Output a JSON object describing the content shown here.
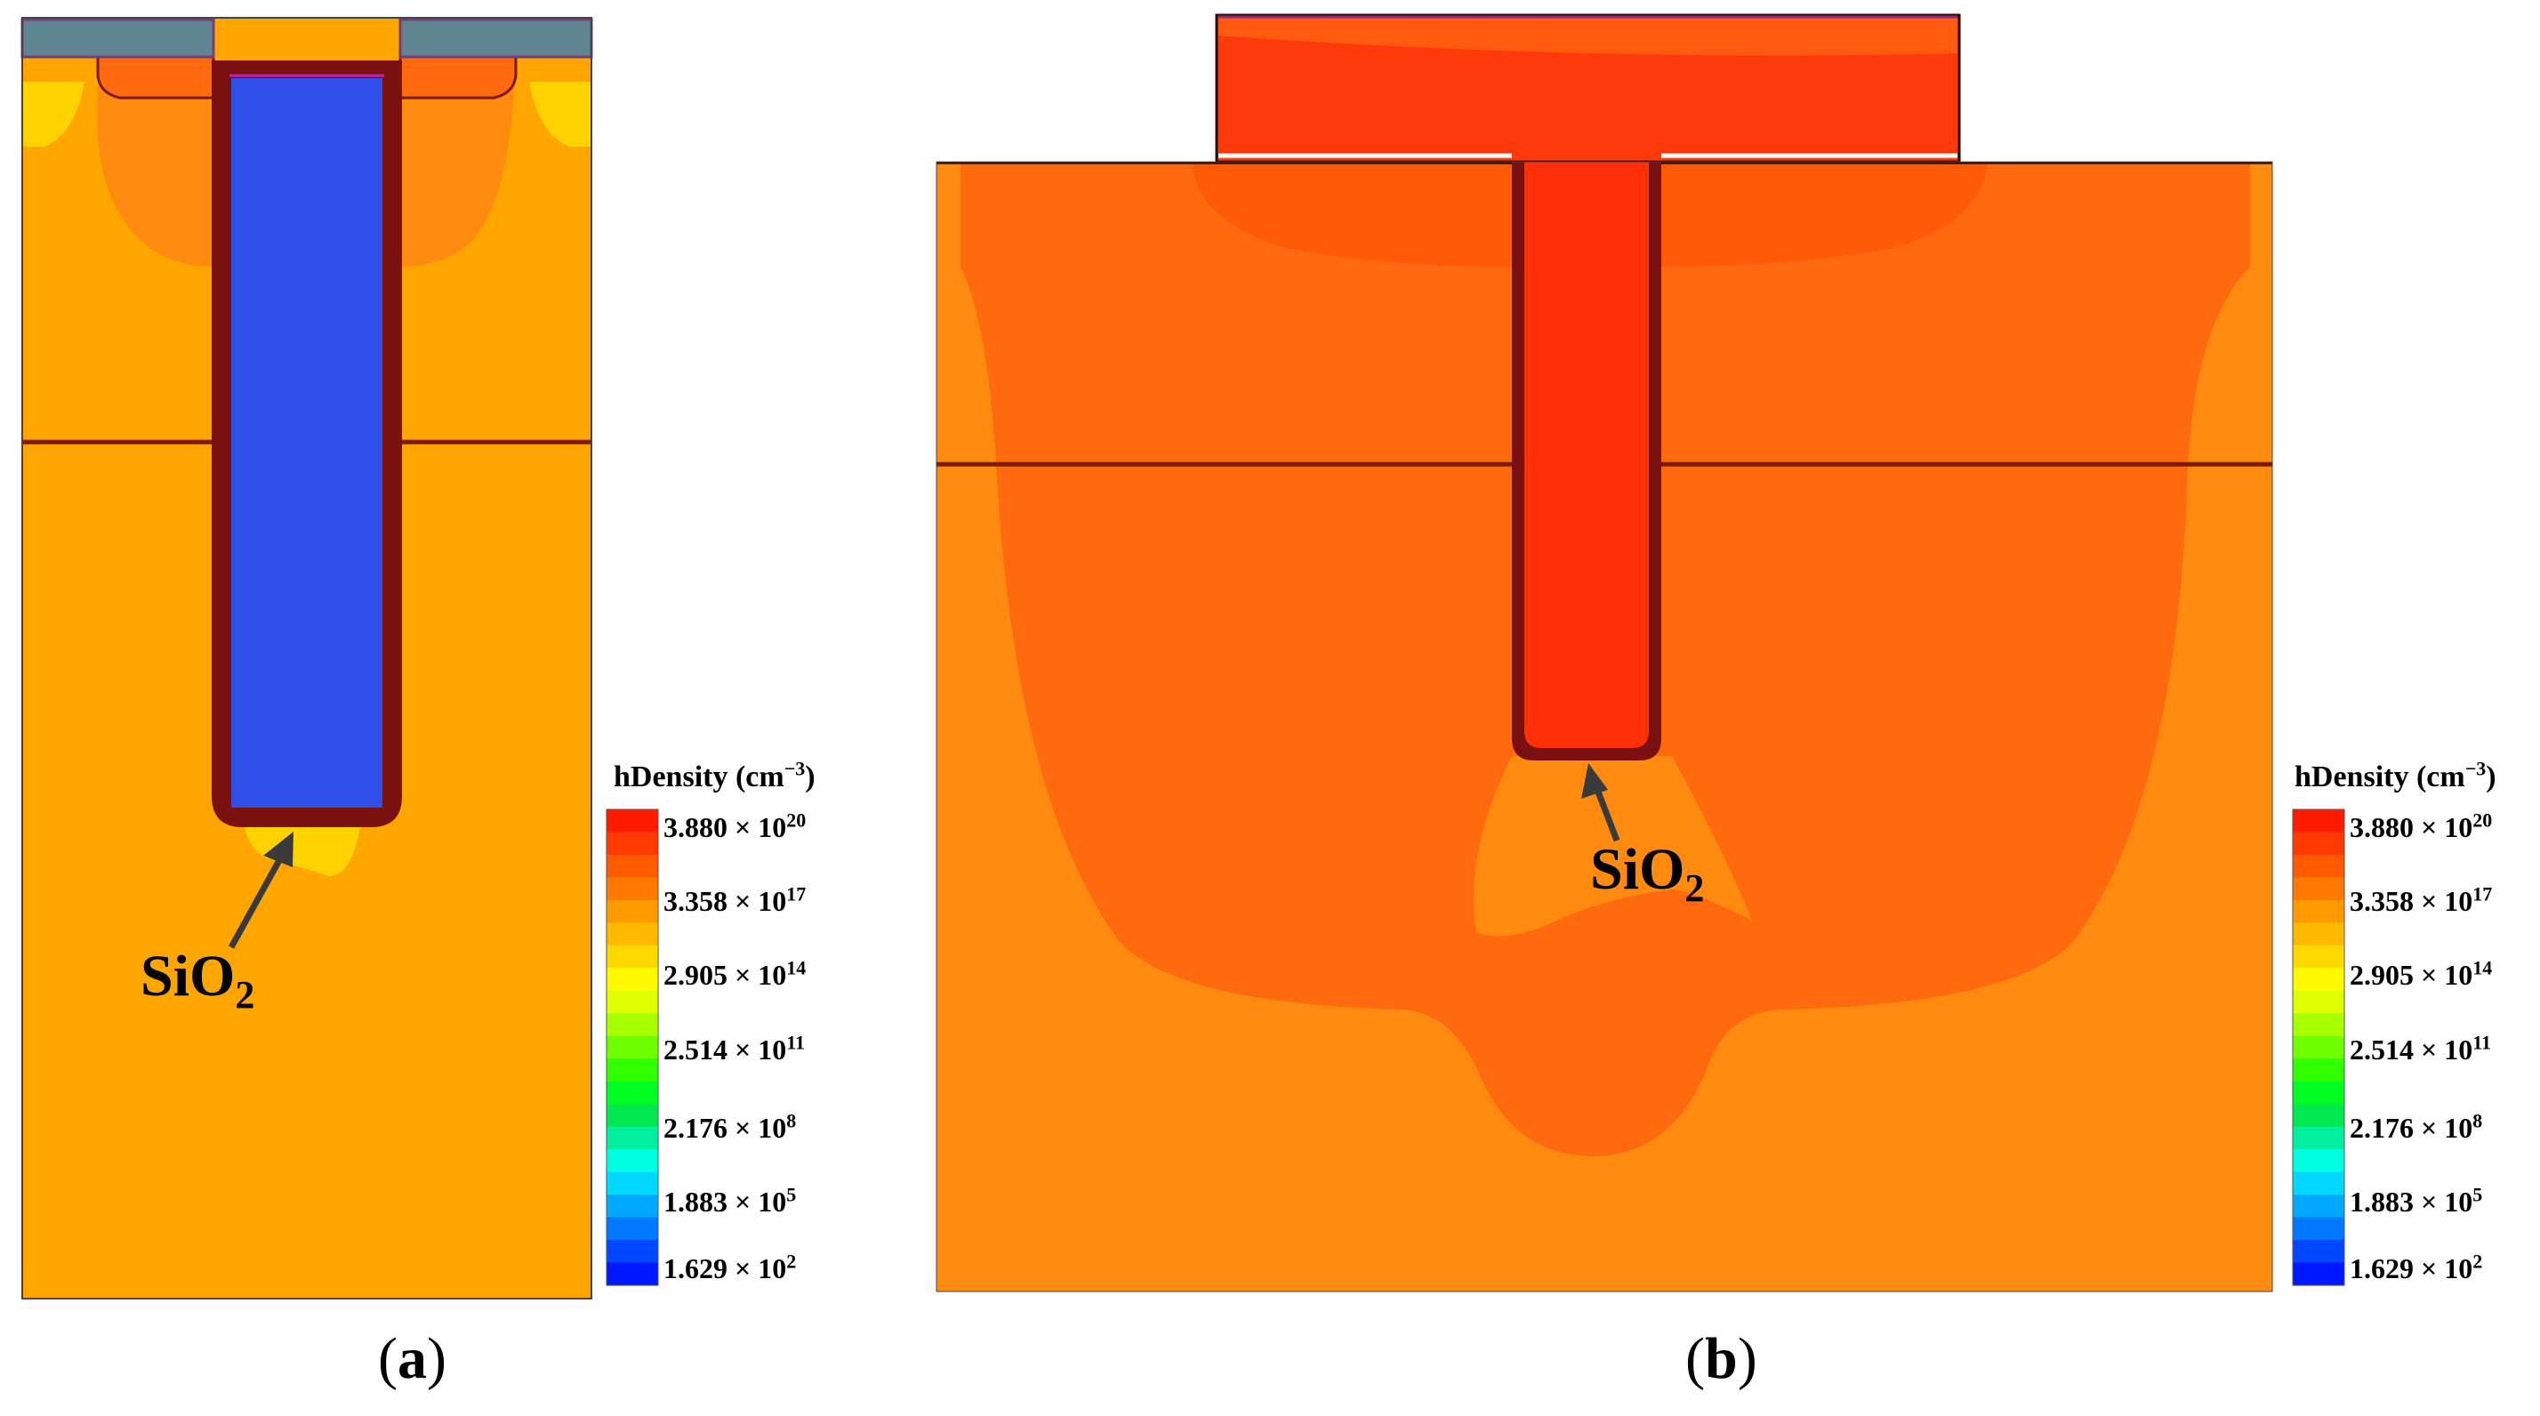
{
  "colors": {
    "background_orange": "#FFA500",
    "mid_orange": "#FF8A10",
    "dark_orange": "#FF6A0E",
    "deep_orange": "#FF5A08",
    "red_orange": "#FF2F08",
    "trench_blue": "#2E4FE8",
    "oxide_liner": "#7A1010",
    "pad_gray": "#5F8590",
    "boundary_line": "#7A1A00"
  },
  "panels": [
    {
      "id": "a",
      "caption_letter": "a",
      "oxide_label": {
        "main": "SiO",
        "subscript": "2"
      },
      "colorbar": {
        "title_main": "hDensity (cm",
        "title_exp": "−3",
        "title_close": ")",
        "ticks": [
          {
            "mantissa": "3.880 × 10",
            "exp": "20"
          },
          {
            "mantissa": "3.358 × 10",
            "exp": "17"
          },
          {
            "mantissa": "2.905 × 10",
            "exp": "14"
          },
          {
            "mantissa": "2.514 × 10",
            "exp": "11"
          },
          {
            "mantissa": "2.176 × 10",
            "exp": "8"
          },
          {
            "mantissa": "1.883 × 10",
            "exp": "5"
          },
          {
            "mantissa": "1.629 × 10",
            "exp": "2"
          }
        ],
        "stops": [
          "#FF1A00",
          "#FF3A00",
          "#FF5A00",
          "#FF7A00",
          "#FF9A00",
          "#FFBA00",
          "#FFDA00",
          "#FFFA00",
          "#E0FF00",
          "#A8FF00",
          "#70FF00",
          "#30FF00",
          "#00FF20",
          "#00E850",
          "#00F0A0",
          "#00FFE0",
          "#00D8FF",
          "#00A8FF",
          "#0078FF",
          "#0048FF",
          "#0018FF"
        ]
      }
    },
    {
      "id": "b",
      "caption_letter": "b",
      "oxide_label": {
        "main": "SiO",
        "subscript": "2"
      },
      "colorbar": {
        "title_main": "hDensity (cm",
        "title_exp": "−3",
        "title_close": ")",
        "ticks": [
          {
            "mantissa": "3.880 × 10",
            "exp": "20"
          },
          {
            "mantissa": "3.358 × 10",
            "exp": "17"
          },
          {
            "mantissa": "2.905 × 10",
            "exp": "14"
          },
          {
            "mantissa": "2.514 × 10",
            "exp": "11"
          },
          {
            "mantissa": "2.176 × 10",
            "exp": "8"
          },
          {
            "mantissa": "1.883 × 10",
            "exp": "5"
          },
          {
            "mantissa": "1.629 × 10",
            "exp": "2"
          }
        ],
        "stops": [
          "#FF1A00",
          "#FF3A00",
          "#FF5A00",
          "#FF7A00",
          "#FF9A00",
          "#FFBA00",
          "#FFDA00",
          "#FFFA00",
          "#E0FF00",
          "#A8FF00",
          "#70FF00",
          "#30FF00",
          "#00FF20",
          "#00E850",
          "#00F0A0",
          "#00FFE0",
          "#00D8FF",
          "#00A8FF",
          "#0078FF",
          "#0048FF",
          "#0018FF"
        ]
      }
    }
  ]
}
